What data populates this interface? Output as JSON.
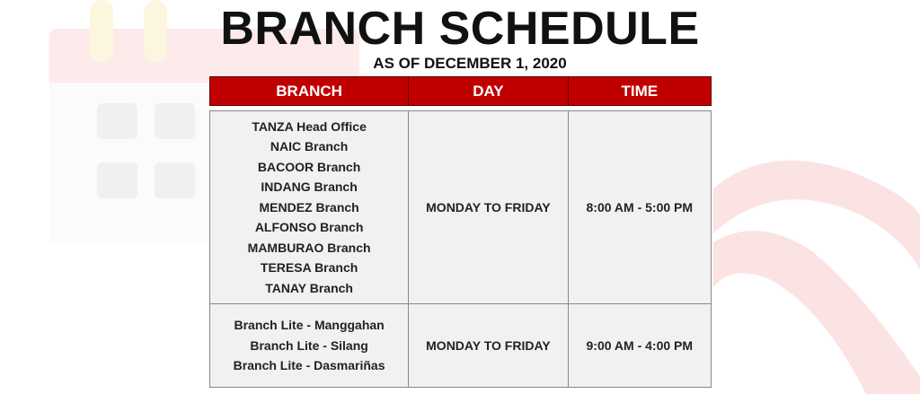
{
  "title": "BRANCH SCHEDULE",
  "subtitle": "AS OF DECEMBER 1, 2020",
  "colors": {
    "header_bg": "#c00000",
    "cell_bg": "#f1f1f1"
  },
  "headers": [
    "BRANCH",
    "DAY",
    "TIME"
  ],
  "rows": [
    {
      "branches": [
        "TANZA Head Office",
        "NAIC Branch",
        "BACOOR Branch",
        "INDANG Branch",
        "MENDEZ Branch",
        "ALFONSO Branch",
        "MAMBURAO Branch",
        "TERESA Branch",
        "TANAY Branch"
      ],
      "day": "MONDAY TO FRIDAY",
      "time": "8:00 AM - 5:00 PM"
    },
    {
      "branches": [
        "Branch Lite - Manggahan",
        "Branch Lite - Silang",
        "Branch Lite - Dasmariñas"
      ],
      "day": "MONDAY TO FRIDAY",
      "time": "9:00 AM - 4:00 PM"
    }
  ]
}
